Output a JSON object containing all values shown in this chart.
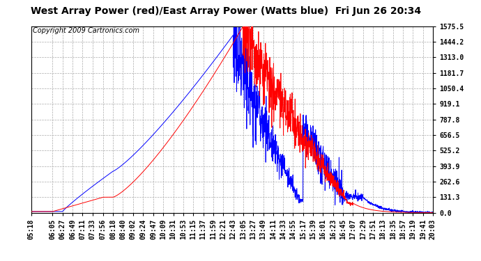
{
  "title": "West Array Power (red)/East Array Power (Watts blue)  Fri Jun 26 20:34",
  "copyright": "Copyright 2009 Cartronics.com",
  "y_ticks": [
    0.0,
    131.3,
    262.6,
    393.9,
    525.2,
    656.5,
    787.8,
    919.1,
    1050.4,
    1181.7,
    1313.0,
    1444.2,
    1575.5
  ],
  "y_max": 1575.5,
  "y_min": 0.0,
  "x_labels": [
    "05:18",
    "06:05",
    "06:27",
    "06:49",
    "07:11",
    "07:33",
    "07:56",
    "08:18",
    "08:40",
    "09:02",
    "09:24",
    "09:47",
    "10:09",
    "10:31",
    "10:53",
    "11:15",
    "11:37",
    "11:59",
    "12:21",
    "12:43",
    "13:05",
    "13:27",
    "13:49",
    "14:11",
    "14:33",
    "14:55",
    "15:17",
    "15:39",
    "16:01",
    "16:23",
    "16:45",
    "17:07",
    "17:29",
    "17:51",
    "18:13",
    "18:35",
    "18:57",
    "19:19",
    "19:41",
    "20:03"
  ],
  "bg_color": "#ffffff",
  "plot_bg_color": "#ffffff",
  "grid_color": "#aaaaaa",
  "red_color": "#ff0000",
  "blue_color": "#0000ff",
  "title_fontsize": 10,
  "tick_fontsize": 7,
  "copyright_fontsize": 7
}
